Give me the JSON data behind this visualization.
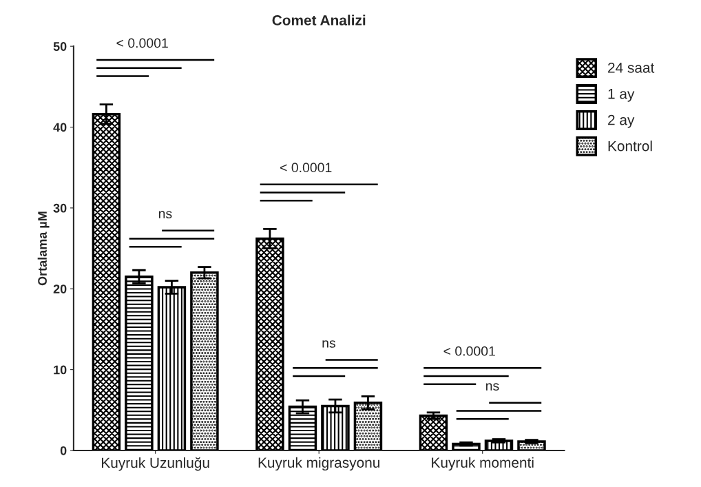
{
  "chart_data": {
    "type": "bar",
    "title": "Comet Analizi",
    "ylabel": "Ortalama µM",
    "categories": [
      "Kuyruk Uzunluğu",
      "Kuyruk migrasyonu",
      "Kuyruk momenti"
    ],
    "series": [
      {
        "name": "24 saat",
        "color": "#000000",
        "values": [
          41.6,
          26.2,
          4.3
        ],
        "errors": [
          1.2,
          1.2,
          0.4
        ]
      },
      {
        "name": "1 ay",
        "color": "#000000",
        "values": [
          21.5,
          5.4,
          0.8
        ],
        "errors": [
          0.8,
          0.8,
          0.2
        ]
      },
      {
        "name": "2 ay",
        "color": "#000000",
        "values": [
          20.2,
          5.5,
          1.2
        ],
        "errors": [
          0.8,
          0.8,
          0.2
        ]
      },
      {
        "name": "Kontrol",
        "color": "#000000",
        "values": [
          22.0,
          5.9,
          1.1
        ],
        "errors": [
          0.7,
          0.8,
          0.2
        ]
      }
    ],
    "ylim": [
      0,
      50
    ],
    "yticks": [
      0,
      10,
      20,
      30,
      40,
      50
    ],
    "grid": false,
    "legend": "top right",
    "annotations": [
      "< 0.0001",
      "ns",
      "< 0.0001",
      "ns",
      "< 0.0001",
      "ns"
    ]
  }
}
